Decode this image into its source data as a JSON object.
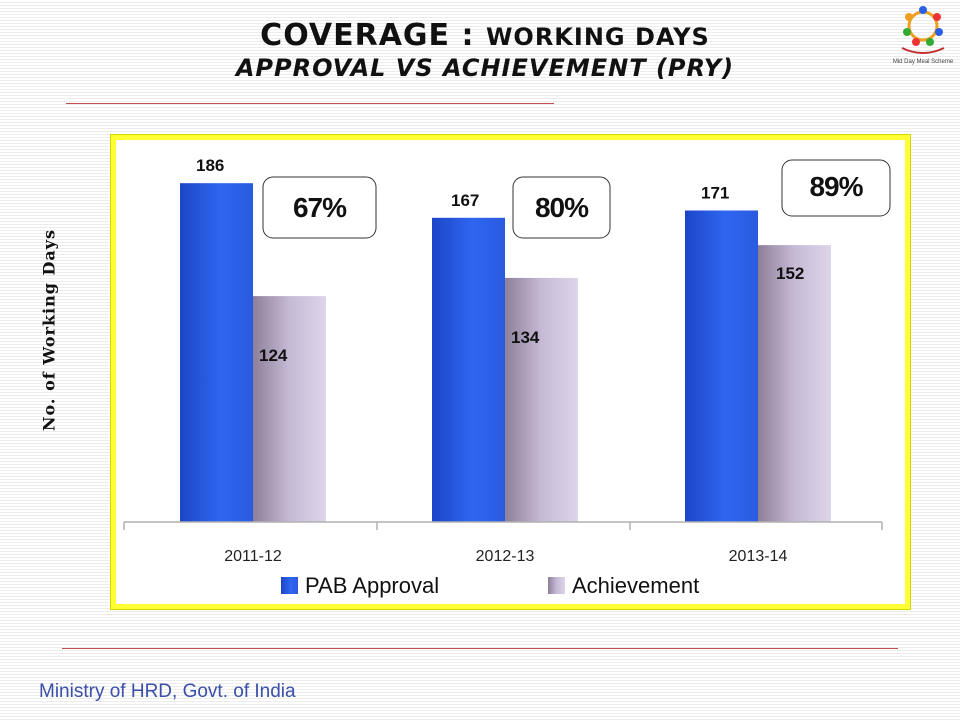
{
  "slide": {
    "title_main": "Coverage :",
    "title_sub": "Working Days",
    "title_line2": "Approval vs  Achievement (PRY)",
    "footer": "Ministry of HRD, Govt. of India",
    "logo_text": "Mid Day Meal Scheme"
  },
  "chart_data": {
    "type": "bar",
    "categories": [
      "2011-12",
      "2012-13",
      "2013-14"
    ],
    "series": [
      {
        "name": "PAB Approval",
        "values": [
          186,
          167,
          171
        ],
        "color": "#2a5fe6"
      },
      {
        "name": "Achievement",
        "values": [
          124,
          134,
          152
        ],
        "color": "#c9bddc"
      }
    ],
    "ylabel": "No. of Working Days",
    "ylim": [
      0,
      200
    ],
    "grid": false,
    "legend": "bottom",
    "annotations": [
      "67%",
      "80%",
      "89%"
    ]
  }
}
